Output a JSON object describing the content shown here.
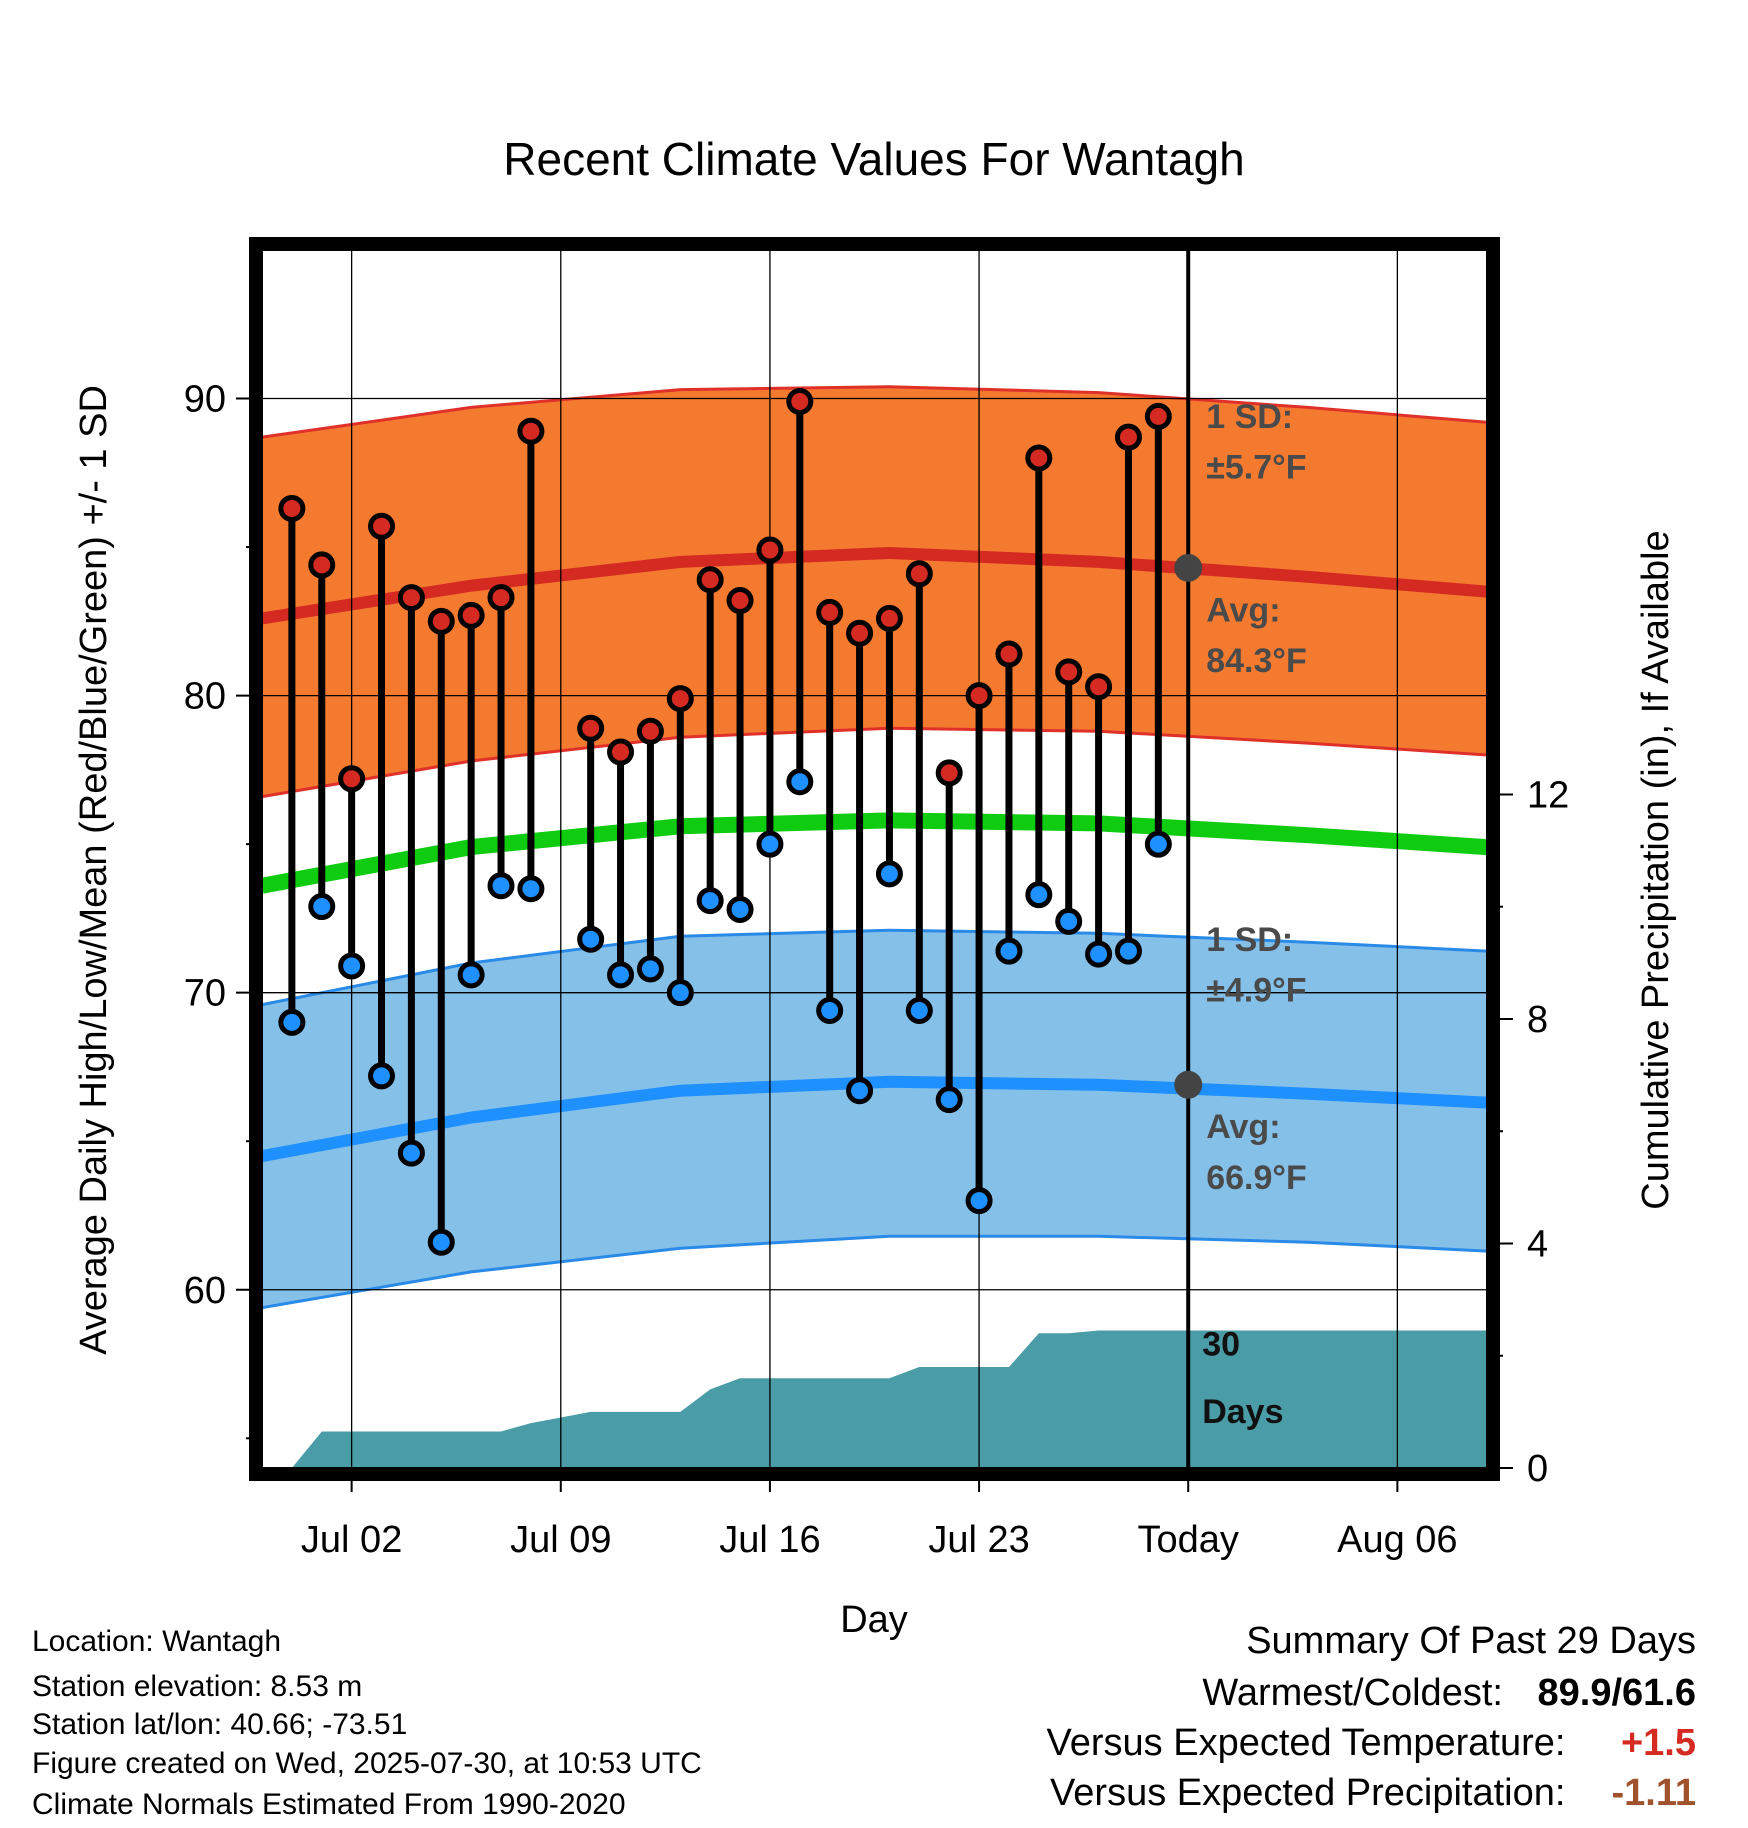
{
  "chart_data": {
    "type": "line",
    "title": "Recent Climate Values For Wantagh",
    "xlabel": "Day",
    "ylabel": "Average Daily High/Low/Mean (Red/Blue/Green) +/- 1 SD",
    "y2label": "Cumulative Precipitation (in), If Available",
    "x_start": "Jun 29",
    "x_end": "Aug 09",
    "x_tick_labels": [
      "Jul 02",
      "Jul 09",
      "Jul 16",
      "Jul 23",
      "Today",
      "Aug 06"
    ],
    "x_tick_dates": [
      "Jul 02",
      "Jul 09",
      "Jul 16",
      "Jul 23",
      "Jul 30",
      "Aug 06"
    ],
    "ylim": [
      54.0,
      95.0
    ],
    "yticks": [
      60,
      70,
      80,
      90
    ],
    "y2lim": [
      0,
      21.7
    ],
    "y2ticks": [
      0,
      4,
      8,
      12
    ],
    "grid": true,
    "days": [
      "Jun 30",
      "Jul 01",
      "Jul 02",
      "Jul 03",
      "Jul 04",
      "Jul 05",
      "Jul 06",
      "Jul 07",
      "Jul 08",
      "Jul 09",
      "Jul 10",
      "Jul 11",
      "Jul 12",
      "Jul 13",
      "Jul 14",
      "Jul 15",
      "Jul 16",
      "Jul 17",
      "Jul 18",
      "Jul 19",
      "Jul 20",
      "Jul 21",
      "Jul 22",
      "Jul 23",
      "Jul 24",
      "Jul 25",
      "Jul 26",
      "Jul 27",
      "Jul 28",
      "Jul 29"
    ],
    "daily_high": [
      86.3,
      84.4,
      77.2,
      85.7,
      83.3,
      82.5,
      82.7,
      83.3,
      88.9,
      null,
      78.9,
      78.1,
      78.8,
      79.9,
      83.9,
      83.2,
      84.9,
      89.9,
      82.8,
      82.1,
      82.6,
      84.1,
      77.4,
      80.0,
      81.4,
      88.0,
      80.8,
      80.3,
      88.7,
      89.4
    ],
    "daily_low": [
      69.0,
      72.9,
      70.9,
      67.2,
      64.6,
      61.6,
      70.6,
      73.6,
      73.5,
      null,
      71.8,
      70.6,
      70.8,
      70.0,
      73.1,
      72.8,
      75.0,
      77.1,
      69.4,
      66.7,
      74.0,
      69.4,
      66.4,
      63.0,
      71.4,
      73.3,
      72.4,
      71.3,
      71.4,
      75.0
    ],
    "normals": {
      "days": [
        "Jun 29",
        "Jul 06",
        "Jul 13",
        "Jul 20",
        "Jul 27",
        "Aug 03",
        "Aug 09"
      ],
      "avg_high": [
        82.6,
        83.7,
        84.5,
        84.8,
        84.5,
        84.0,
        83.5
      ],
      "high_upper": [
        88.7,
        89.7,
        90.3,
        90.4,
        90.2,
        89.7,
        89.2
      ],
      "high_lower": [
        76.6,
        77.8,
        78.6,
        78.9,
        78.8,
        78.4,
        78.0
      ],
      "avg_mean": [
        73.6,
        74.9,
        75.6,
        75.8,
        75.7,
        75.3,
        74.9
      ],
      "avg_low": [
        64.5,
        65.8,
        66.7,
        67.0,
        66.9,
        66.6,
        66.3
      ],
      "low_upper": [
        69.6,
        71.0,
        71.9,
        72.1,
        72.0,
        71.7,
        71.4
      ],
      "low_lower": [
        59.4,
        60.6,
        61.4,
        61.8,
        61.8,
        61.6,
        61.3
      ]
    },
    "today_avg_high": 84.3,
    "today_avg_low": 66.9,
    "precip_cumulative": {
      "days": [
        "Jun 30",
        "Jul 01",
        "Jul 02",
        "Jul 03",
        "Jul 04",
        "Jul 05",
        "Jul 06",
        "Jul 07",
        "Jul 08",
        "Jul 09",
        "Jul 10",
        "Jul 11",
        "Jul 12",
        "Jul 13",
        "Jul 14",
        "Jul 15",
        "Jul 16",
        "Jul 17",
        "Jul 18",
        "Jul 19",
        "Jul 20",
        "Jul 21",
        "Jul 22",
        "Jul 23",
        "Jul 24",
        "Jul 25",
        "Jul 26",
        "Jul 27",
        "Jul 28",
        "Jul 29",
        "Aug 09"
      ],
      "values": [
        0.0,
        0.65,
        0.65,
        0.65,
        0.65,
        0.65,
        0.65,
        0.65,
        0.8,
        0.9,
        1.0,
        1.0,
        1.0,
        1.0,
        1.4,
        1.6,
        1.6,
        1.6,
        1.6,
        1.6,
        1.6,
        1.8,
        1.8,
        1.8,
        1.8,
        2.4,
        2.4,
        2.45,
        2.45,
        2.45,
        2.45
      ]
    },
    "colors": {
      "high_band": "#f47a30",
      "high_line": "#d42a22",
      "high_edge": "#e0302a",
      "mean_line": "#10cc10",
      "low_band": "#85c0e8",
      "low_line": "#1e90ff",
      "low_edge": "#2a8ae8",
      "precip_fill": "#4a9ca6",
      "high_marker": "#d42a22",
      "low_marker": "#1e90ff",
      "today_marker": "#444444"
    },
    "annotations": {
      "high_sd_label": "1 SD:",
      "high_sd_value": "±5.7°F",
      "high_avg_label": "Avg:",
      "high_avg_value": "84.3°F",
      "low_sd_label": "1 SD:",
      "low_sd_value": "±4.9°F",
      "low_avg_label": "Avg:",
      "low_avg_value": "66.9°F",
      "precip_label_1": "30",
      "precip_label_2": "Days"
    }
  },
  "info": {
    "location": "Location: Wantagh",
    "elevation": "Station elevation: 8.53 m",
    "latlon": "Station lat/lon: 40.66; -73.51",
    "created": "Figure created on Wed, 2025-07-30, at 10:53 UTC",
    "normals": "Climate Normals Estimated From 1990-2020"
  },
  "summary": {
    "heading": "Summary Of Past 29 Days",
    "warm_cold_label": "Warmest/Coldest:",
    "warm_cold_value": "89.9/61.6",
    "temp_label": "Versus Expected Temperature:",
    "temp_value": "+1.5",
    "temp_color": "#d42a22",
    "precip_label": "Versus Expected Precipitation:",
    "precip_value": "-1.11",
    "precip_color": "#a0522d"
  }
}
